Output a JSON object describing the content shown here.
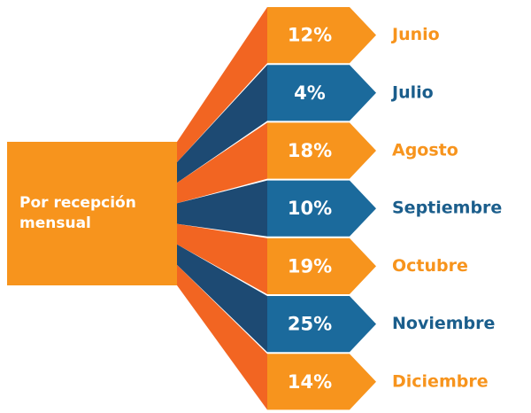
{
  "center": {
    "lines": [
      "Por recepción",
      "mensual"
    ]
  },
  "items": [
    {
      "percent": "12%",
      "label": "Junio",
      "theme": "orange"
    },
    {
      "percent": "4%",
      "label": "Julio",
      "theme": "blue"
    },
    {
      "percent": "18%",
      "label": "Agosto",
      "theme": "orange"
    },
    {
      "percent": "10%",
      "label": "Septiembre",
      "theme": "blue"
    },
    {
      "percent": "19%",
      "label": "Octubre",
      "theme": "orange"
    },
    {
      "percent": "25%",
      "label": "Noviembre",
      "theme": "blue"
    },
    {
      "percent": "14%",
      "label": "Diciembre",
      "theme": "orange"
    }
  ]
}
